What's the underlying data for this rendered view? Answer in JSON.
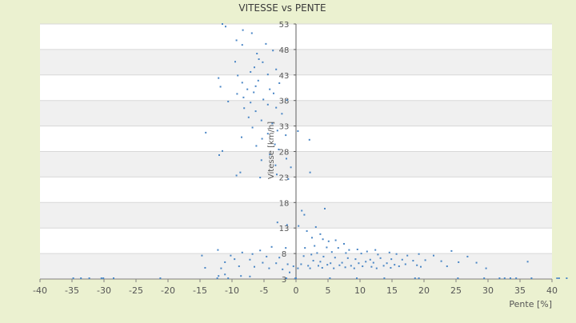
{
  "chart_data": {
    "type": "scatter",
    "title": "VITESSE vs PENTE",
    "xlabel": "Pente [%]",
    "ylabel": "Vitesse [km/h]",
    "xlim": [
      -40,
      40
    ],
    "ylim": [
      3,
      53
    ],
    "x_ticks": [
      -40,
      -35,
      -30,
      -25,
      -20,
      -15,
      -10,
      -5,
      0,
      5,
      10,
      15,
      20,
      25,
      30,
      35,
      40
    ],
    "y_ticks": [
      3,
      8,
      13,
      18,
      23,
      28,
      33,
      38,
      43,
      48,
      53
    ],
    "grid": true,
    "legend": "none",
    "colors": {
      "background": "#EBF1D0",
      "band_light": "#FFFFFF",
      "band_dark": "#F0F0F0",
      "marker": "#4A86C5",
      "text": "#444444"
    },
    "series": [
      {
        "values": [
          [
            -11.5,
            53.5
          ],
          [
            -11,
            52.5
          ],
          [
            -8.3,
            51.8
          ],
          [
            -6.9,
            51.2
          ],
          [
            -9.3,
            49.8
          ],
          [
            -8.4,
            48.9
          ],
          [
            -4.7,
            49.1
          ],
          [
            -3.6,
            47.8
          ],
          [
            -6.1,
            47.2
          ],
          [
            -5.8,
            46.1
          ],
          [
            -9.5,
            45.6
          ],
          [
            -5.2,
            45.5
          ],
          [
            -6.5,
            44.5
          ],
          [
            -3.1,
            44.1
          ],
          [
            -7.1,
            43.6
          ],
          [
            -9.1,
            42.9
          ],
          [
            -12.1,
            42.4
          ],
          [
            -4.4,
            43.1
          ],
          [
            -5.9,
            41.9
          ],
          [
            -8.4,
            41.5
          ],
          [
            -6.3,
            40.8
          ],
          [
            -2.6,
            41.4
          ],
          [
            -11.8,
            40.7
          ],
          [
            -4.1,
            40.2
          ],
          [
            -7.6,
            40.2
          ],
          [
            -6.6,
            39.6
          ],
          [
            -3.5,
            39.4
          ],
          [
            -9.2,
            39.3
          ],
          [
            -8.2,
            38.6
          ],
          [
            -1.4,
            38.1
          ],
          [
            -5.1,
            38.2
          ],
          [
            -10.6,
            37.8
          ],
          [
            -7.1,
            37.6
          ],
          [
            -4.4,
            37.2
          ],
          [
            -3.1,
            36.6
          ],
          [
            -8.1,
            36.5
          ],
          [
            -6.3,
            35.9
          ],
          [
            -2.2,
            35.4
          ],
          [
            -7.4,
            34.7
          ],
          [
            -5.4,
            34.1
          ],
          [
            -3.7,
            33.5
          ],
          [
            -6.8,
            32.7
          ],
          [
            -2.9,
            32.1
          ],
          [
            -4.4,
            31.5
          ],
          [
            -8.5,
            30.8
          ],
          [
            -5.3,
            30.5
          ],
          [
            -14.1,
            31.7
          ],
          [
            -1.6,
            31.2
          ],
          [
            -3.3,
            29.4
          ],
          [
            -6.2,
            29.1
          ],
          [
            -2.7,
            28.4
          ],
          [
            -11.5,
            28.1
          ],
          [
            -12,
            27.3
          ],
          [
            -4.1,
            27.4
          ],
          [
            -5.4,
            26.3
          ],
          [
            -1.5,
            26.6
          ],
          [
            -3.2,
            25.3
          ],
          [
            -0.8,
            24.9
          ],
          [
            0.3,
            32
          ],
          [
            2.1,
            30.3
          ],
          [
            -9.3,
            23.3
          ],
          [
            -8.7,
            23.9
          ],
          [
            -5.6,
            22.9
          ],
          [
            -3,
            23.5
          ],
          [
            -1.2,
            22.6
          ],
          [
            2.2,
            23.9
          ],
          [
            0.9,
            16.4
          ],
          [
            1.3,
            15.6
          ],
          [
            4.5,
            16.8
          ],
          [
            -2.9,
            14.1
          ],
          [
            -1.4,
            13.6
          ],
          [
            0.4,
            13.4
          ],
          [
            3.1,
            13.2
          ],
          [
            1.7,
            12.4
          ],
          [
            3.8,
            11.8
          ],
          [
            2.5,
            11.1
          ],
          [
            4.2,
            10.8
          ],
          [
            5.1,
            10.4
          ],
          [
            6.2,
            10.6
          ],
          [
            7.5,
            9.9
          ],
          [
            2.9,
            9.5
          ],
          [
            1.4,
            9.1
          ],
          [
            4.8,
            9.2
          ],
          [
            6.6,
            9.1
          ],
          [
            8.3,
            8.7
          ],
          [
            9.6,
            8.8
          ],
          [
            11.1,
            8.4
          ],
          [
            12.4,
            8.7
          ],
          [
            14.6,
            8.2
          ],
          [
            3.3,
            8.1
          ],
          [
            5.6,
            8.3
          ],
          [
            7.8,
            8.1
          ],
          [
            10.2,
            8
          ],
          [
            12.8,
            7.8
          ],
          [
            15.7,
            7.9
          ],
          [
            17.4,
            7.6
          ],
          [
            19.2,
            7.9
          ],
          [
            21.5,
            7.6
          ],
          [
            24.3,
            8.5
          ],
          [
            26.8,
            7.4
          ],
          [
            1.2,
            7.5
          ],
          [
            2.4,
            7.8
          ],
          [
            4.3,
            7.4
          ],
          [
            6.1,
            7.2
          ],
          [
            8.1,
            7.1
          ],
          [
            9.3,
            6.9
          ],
          [
            11.6,
            6.8
          ],
          [
            13.2,
            7.1
          ],
          [
            14.9,
            6.9
          ],
          [
            16.6,
            6.8
          ],
          [
            18.3,
            6.6
          ],
          [
            20.2,
            6.7
          ],
          [
            22.7,
            6.5
          ],
          [
            25.4,
            6.3
          ],
          [
            28.2,
            6.2
          ],
          [
            36.2,
            6.4
          ],
          [
            2.7,
            6.6
          ],
          [
            3.8,
            6.4
          ],
          [
            5.4,
            6.1
          ],
          [
            7.2,
            6.2
          ],
          [
            9.8,
            6.1
          ],
          [
            10.9,
            6.4
          ],
          [
            12.1,
            6.2
          ],
          [
            14.2,
            6.1
          ],
          [
            15.4,
            5.8
          ],
          [
            17.1,
            5.9
          ],
          [
            18.9,
            5.7
          ],
          [
            0.8,
            5.9
          ],
          [
            1.9,
            5.6
          ],
          [
            3.5,
            5.6
          ],
          [
            4.9,
            5.8
          ],
          [
            6.8,
            5.7
          ],
          [
            8.6,
            5.6
          ],
          [
            10.4,
            5.5
          ],
          [
            11.8,
            5.4
          ],
          [
            13.7,
            5.6
          ],
          [
            16.1,
            5.5
          ],
          [
            19.5,
            5.4
          ],
          [
            23.6,
            5.5
          ],
          [
            29.7,
            5.1
          ],
          [
            0.3,
            5.1
          ],
          [
            2.2,
            5.1
          ],
          [
            4.1,
            5.2
          ],
          [
            5.9,
            5.1
          ],
          [
            7.7,
            5.3
          ],
          [
            9.1,
            5.1
          ],
          [
            12.6,
            5.1
          ],
          [
            14.8,
            5.2
          ],
          [
            -1.6,
            9.1
          ],
          [
            -3.8,
            9.3
          ],
          [
            -5.6,
            8.6
          ],
          [
            -6.8,
            7.9
          ],
          [
            -8.4,
            8.2
          ],
          [
            -10.2,
            7.6
          ],
          [
            -12.2,
            8.7
          ],
          [
            -14.7,
            7.6
          ],
          [
            -4.6,
            7.4
          ],
          [
            -2.6,
            7.2
          ],
          [
            -7.2,
            6.8
          ],
          [
            -9.6,
            6.9
          ],
          [
            -11.1,
            6.3
          ],
          [
            -5.2,
            6.2
          ],
          [
            -3.1,
            6.1
          ],
          [
            -1.3,
            5.9
          ],
          [
            -6.5,
            5.4
          ],
          [
            -8.9,
            5.5
          ],
          [
            -11.7,
            5.1
          ],
          [
            -14.2,
            5.2
          ],
          [
            -4.2,
            5.1
          ],
          [
            -2.1,
            4.9
          ],
          [
            -0.4,
            5.5
          ],
          [
            -1,
            4.3
          ],
          [
            -12.1,
            3.6
          ],
          [
            -11.1,
            3.9
          ],
          [
            -8.6,
            3.6
          ],
          [
            -7.2,
            3.5
          ],
          [
            -34.8,
            1.3
          ],
          [
            -33.6,
            1.5
          ],
          [
            -32.3,
            1.4
          ],
          [
            -30.4,
            1.2
          ],
          [
            -30.1,
            1.3
          ],
          [
            -28.5,
            1.4
          ],
          [
            -21.2,
            1.5
          ],
          [
            -12.3,
            1.2
          ],
          [
            -10.6,
            1.4
          ],
          [
            -1.5,
            2.9
          ],
          [
            0,
            1.3
          ],
          [
            -0.1,
            2.3
          ],
          [
            25.3,
            1.4
          ],
          [
            29.4,
            1.2
          ],
          [
            31.8,
            1.4
          ],
          [
            32.6,
            1.3
          ],
          [
            33.5,
            1.2
          ],
          [
            34.4,
            1.3
          ],
          [
            36.8,
            1.4
          ],
          [
            40.8,
            1.8
          ],
          [
            41.1,
            1.5
          ],
          [
            42.3,
            1.6
          ],
          [
            5.3,
            1.4
          ],
          [
            9.5,
            1.5
          ],
          [
            13.8,
            1.3
          ],
          [
            18.6,
            1.5
          ],
          [
            19.2,
            1.4
          ]
        ]
      }
    ]
  }
}
